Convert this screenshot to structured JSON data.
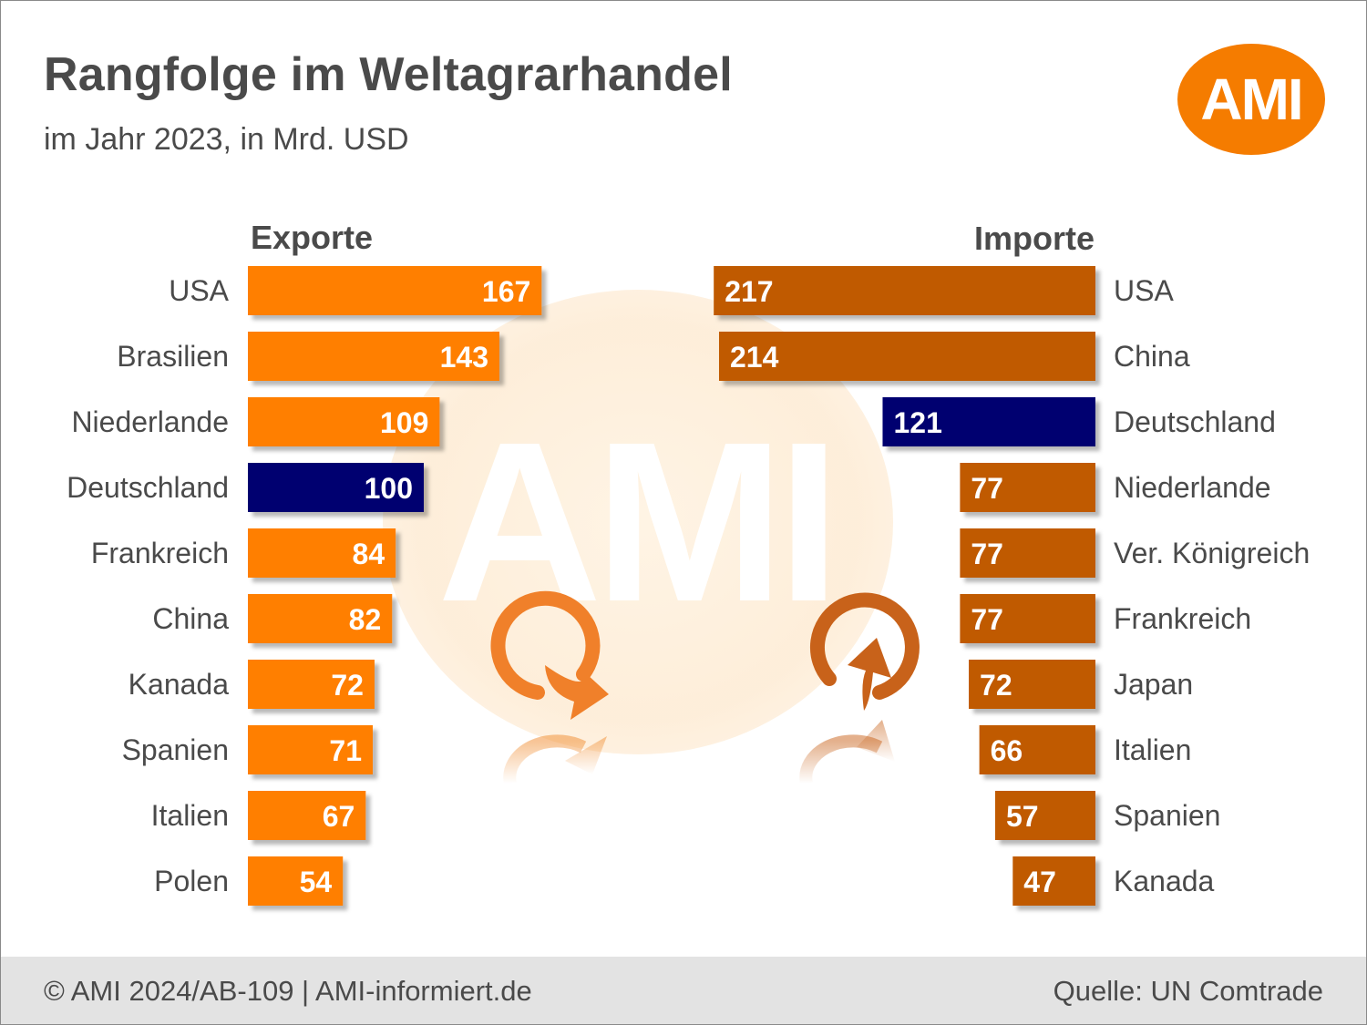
{
  "header": {
    "title": "Rangfolge im Weltagrarhandel",
    "subtitle": "im Jahr 2023, in Mrd. USD",
    "logo": "AMI"
  },
  "watermark": {
    "text": "AMI"
  },
  "colors": {
    "export_bar": "#ff7f00",
    "import_bar": "#c05a00",
    "highlight": "#000070",
    "label_text": "#4a4a4a"
  },
  "chart_data": [
    {
      "type": "bar",
      "orientation": "horizontal",
      "title": "Exporte",
      "categories": [
        "USA",
        "Brasilien",
        "Niederlande",
        "Deutschland",
        "Frankreich",
        "China",
        "Kanada",
        "Spanien",
        "Italien",
        "Polen"
      ],
      "values": [
        167,
        143,
        109,
        100,
        84,
        82,
        72,
        71,
        67,
        54
      ],
      "highlight": "Deutschland",
      "direction": "left-to-right",
      "legend": "none",
      "grid": false
    },
    {
      "type": "bar",
      "orientation": "horizontal",
      "title": "Importe",
      "categories": [
        "USA",
        "China",
        "Deutschland",
        "Niederlande",
        "Ver. Königreich",
        "Frankreich",
        "Japan",
        "Italien",
        "Spanien",
        "Kanada"
      ],
      "values": [
        217,
        214,
        121,
        77,
        77,
        77,
        72,
        66,
        57,
        47
      ],
      "highlight": "Deutschland",
      "direction": "right-to-left",
      "legend": "none",
      "grid": false
    }
  ],
  "footer": {
    "left": "© AMI 2024/AB-109 | AMI-informiert.de",
    "right": "Quelle: UN Comtrade"
  }
}
